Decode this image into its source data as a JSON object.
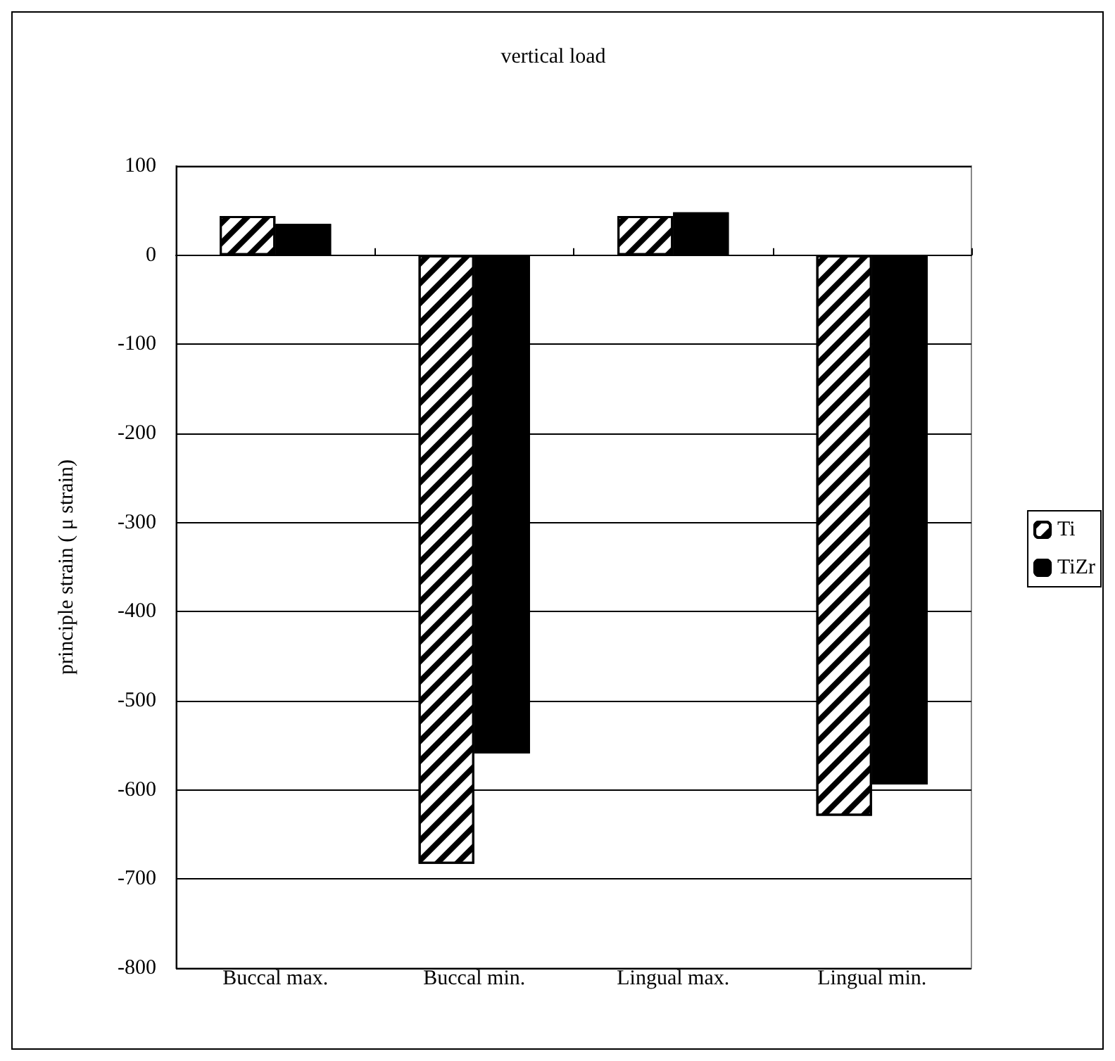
{
  "chart_data": {
    "type": "bar",
    "title": "vertical load",
    "ylabel": "principle strain ( μ strain)",
    "categories": [
      "Buccal max.",
      "Buccal min.",
      "Lingual max.",
      "Lingual min."
    ],
    "series": [
      {
        "name": "Ti",
        "color": "#ffffff",
        "values": [
          44,
          -683,
          44,
          -629
        ]
      },
      {
        "name": "TiZr",
        "color": "#000000",
        "values": [
          35,
          -559,
          48,
          -594
        ]
      }
    ],
    "ylim": [
      -800,
      100
    ],
    "yticks": [
      -800,
      -700,
      -600,
      -500,
      -400,
      -300,
      -200,
      -100,
      0,
      100
    ],
    "grid": "y",
    "legend": "right"
  }
}
